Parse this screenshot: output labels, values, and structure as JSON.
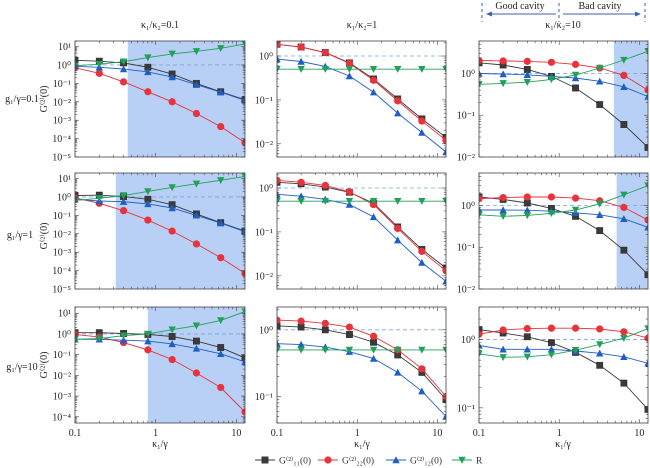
{
  "figure": {
    "cavity_header": {
      "left_label": "Good cavity",
      "right_label": "Bad cavity",
      "arrow_color": "#3a62b5"
    },
    "column_titles": [
      "κ₁/κ₂=0.1",
      "κ₁/κ₂=1",
      "κ₁/κ₂=10"
    ],
    "row_labels": [
      "g₁/γ=0.1",
      "g₁/γ=1",
      "g₁/γ=10"
    ],
    "ylabel": "G⁽²⁾(0)",
    "xlabel": "κ₁/γ",
    "colors": {
      "G11": "#3a3a3a",
      "G22": "#e8323c",
      "G12": "#1f5fc4",
      "R": "#22a05a",
      "shade": "#b8d0f5",
      "reference": "#7aa6dd"
    },
    "legend": [
      {
        "key": "G11",
        "label": "G⁽²⁾₁₁(0)",
        "marker": "square"
      },
      {
        "key": "G22",
        "label": "G⁽²⁾₂₂(0)",
        "marker": "circle"
      },
      {
        "key": "G12",
        "label": "G⁽²⁾₁₂(0)",
        "marker": "triangle-up"
      },
      {
        "key": "R",
        "label": "R",
        "marker": "triangle-down"
      }
    ]
  },
  "chart_data": [
    {
      "type": "line",
      "row": 0,
      "col": 0,
      "xscale": "log",
      "yscale": "log",
      "xlim": [
        0.1,
        12.8
      ],
      "ylim": [
        1e-05,
        20
      ],
      "yticks": [
        10,
        1,
        0.1,
        0.01,
        0.001,
        0.0001,
        1e-05
      ],
      "ytick_labels": [
        "10¹",
        "10⁰",
        "10⁻¹",
        "10⁻²",
        "10⁻³",
        "10⁻⁴",
        "10⁻⁵"
      ],
      "shade_from": 0.45,
      "reference_y": 1,
      "x": [
        0.1,
        0.2,
        0.4,
        0.8,
        1.6,
        3.2,
        6.4,
        12.8
      ],
      "series": [
        {
          "key": "G11",
          "values": [
            1.8,
            1.6,
            1.3,
            0.75,
            0.32,
            0.1,
            0.035,
            0.013
          ]
        },
        {
          "key": "G22",
          "values": [
            0.7,
            0.35,
            0.12,
            0.035,
            0.01,
            0.0023,
            0.00045,
            6e-05
          ]
        },
        {
          "key": "G12",
          "values": [
            0.85,
            0.75,
            0.6,
            0.42,
            0.22,
            0.085,
            0.033,
            0.012
          ]
        },
        {
          "key": "R",
          "values": [
            0.9,
            1.1,
            1.5,
            2.5,
            4,
            5.5,
            8,
            14
          ]
        }
      ]
    },
    {
      "type": "line",
      "row": 0,
      "col": 1,
      "xscale": "log",
      "yscale": "log",
      "xlim": [
        0.1,
        12.8
      ],
      "ylim": [
        0.005,
        2.2
      ],
      "yticks": [
        1,
        0.1,
        0.01
      ],
      "ytick_labels": [
        "10⁰",
        "10⁻¹",
        "10⁻²"
      ],
      "shade_from": null,
      "reference_y": 1,
      "x": [
        0.1,
        0.2,
        0.4,
        0.8,
        1.6,
        3.2,
        6.4,
        12.8
      ],
      "series": [
        {
          "key": "G11",
          "values": [
            1.85,
            1.6,
            1.2,
            0.7,
            0.3,
            0.105,
            0.037,
            0.014
          ]
        },
        {
          "key": "G22",
          "values": [
            1.85,
            1.6,
            1.2,
            0.68,
            0.28,
            0.095,
            0.033,
            0.012
          ]
        },
        {
          "key": "G12",
          "values": [
            0.85,
            0.75,
            0.58,
            0.35,
            0.15,
            0.05,
            0.018,
            0.0065
          ]
        },
        {
          "key": "R",
          "values": [
            0.5,
            0.5,
            0.5,
            0.5,
            0.5,
            0.5,
            0.5,
            0.5
          ]
        }
      ]
    },
    {
      "type": "line",
      "row": 0,
      "col": 2,
      "xscale": "log",
      "yscale": "log",
      "xlim": [
        0.1,
        12.8
      ],
      "ylim": [
        0.01,
        6
      ],
      "yticks": [
        1,
        0.1,
        0.01
      ],
      "ytick_labels": [
        "10⁰",
        "10⁻¹",
        "10⁻²"
      ],
      "shade_from": 4.8,
      "reference_y": 1,
      "x": [
        0.1,
        0.2,
        0.4,
        0.8,
        1.6,
        3.2,
        6.4,
        12.8
      ],
      "series": [
        {
          "key": "G11",
          "values": [
            1.8,
            1.6,
            1.25,
            0.85,
            0.45,
            0.18,
            0.06,
            0.017
          ]
        },
        {
          "key": "G22",
          "values": [
            2.05,
            2.0,
            1.95,
            1.85,
            1.65,
            1.35,
            0.9,
            0.4
          ]
        },
        {
          "key": "G12",
          "values": [
            1.0,
            0.97,
            0.93,
            0.85,
            0.78,
            0.65,
            0.48,
            0.28
          ]
        },
        {
          "key": "R",
          "values": [
            0.55,
            0.58,
            0.62,
            0.72,
            0.92,
            1.35,
            2.1,
            3.4
          ]
        }
      ]
    },
    {
      "type": "line",
      "row": 1,
      "col": 0,
      "xscale": "log",
      "yscale": "log",
      "xlim": [
        0.1,
        12.8
      ],
      "ylim": [
        1e-05,
        20
      ],
      "yticks": [
        10,
        1,
        0.1,
        0.01,
        0.001,
        0.0001,
        1e-05
      ],
      "ytick_labels": [
        "10¹",
        "10⁰",
        "10⁻¹",
        "10⁻²",
        "10⁻³",
        "10⁻⁴",
        "10⁻⁵"
      ],
      "shade_from": 0.32,
      "reference_y": 1,
      "x": [
        0.1,
        0.2,
        0.4,
        0.8,
        1.6,
        3.2,
        6.4,
        12.8
      ],
      "series": [
        {
          "key": "G11",
          "values": [
            1.2,
            1.25,
            1.05,
            0.75,
            0.38,
            0.12,
            0.04,
            0.014
          ]
        },
        {
          "key": "G22",
          "values": [
            0.9,
            0.45,
            0.18,
            0.055,
            0.014,
            0.0028,
            0.0005,
            7e-05
          ]
        },
        {
          "key": "G12",
          "values": [
            0.75,
            0.6,
            0.55,
            0.42,
            0.25,
            0.1,
            0.038,
            0.013
          ]
        },
        {
          "key": "R",
          "values": [
            0.65,
            0.85,
            1.2,
            2.0,
            3.3,
            5.2,
            8,
            13
          ]
        }
      ]
    },
    {
      "type": "line",
      "row": 1,
      "col": 1,
      "xscale": "log",
      "yscale": "log",
      "xlim": [
        0.1,
        12.8
      ],
      "ylim": [
        0.005,
        2.2
      ],
      "yticks": [
        1,
        0.1,
        0.01
      ],
      "ytick_labels": [
        "10⁰",
        "10⁻¹",
        "10⁻²"
      ],
      "shade_from": null,
      "reference_y": 1,
      "x": [
        0.1,
        0.2,
        0.4,
        0.8,
        1.6,
        3.2,
        6.4,
        12.8
      ],
      "series": [
        {
          "key": "G11",
          "values": [
            1.35,
            1.25,
            1.05,
            0.8,
            0.45,
            0.13,
            0.04,
            0.015
          ]
        },
        {
          "key": "G22",
          "values": [
            1.5,
            1.35,
            1.15,
            0.82,
            0.42,
            0.12,
            0.036,
            0.013
          ]
        },
        {
          "key": "G12",
          "values": [
            0.72,
            0.65,
            0.55,
            0.42,
            0.22,
            0.065,
            0.02,
            0.0075
          ]
        },
        {
          "key": "R",
          "values": [
            0.5,
            0.5,
            0.5,
            0.5,
            0.5,
            0.5,
            0.5,
            0.5
          ]
        }
      ]
    },
    {
      "type": "line",
      "row": 1,
      "col": 2,
      "xscale": "log",
      "yscale": "log",
      "xlim": [
        0.1,
        12.8
      ],
      "ylim": [
        0.01,
        6
      ],
      "yticks": [
        1,
        0.1,
        0.01
      ],
      "ytick_labels": [
        "10⁰",
        "10⁻¹",
        "10⁻²"
      ],
      "shade_from": 5.2,
      "reference_y": 1,
      "x": [
        0.1,
        0.2,
        0.4,
        0.8,
        1.6,
        3.2,
        6.4,
        12.8
      ],
      "series": [
        {
          "key": "G11",
          "values": [
            1.6,
            1.4,
            1.15,
            0.85,
            0.55,
            0.25,
            0.085,
            0.022
          ]
        },
        {
          "key": "G22",
          "values": [
            1.45,
            1.55,
            1.6,
            1.6,
            1.5,
            1.3,
            0.9,
            0.45
          ]
        },
        {
          "key": "G12",
          "values": [
            0.78,
            0.78,
            0.77,
            0.73,
            0.67,
            0.6,
            0.48,
            0.3
          ]
        },
        {
          "key": "R",
          "values": [
            0.6,
            0.55,
            0.58,
            0.65,
            0.78,
            1.1,
            1.8,
            3.0
          ]
        }
      ]
    },
    {
      "type": "line",
      "row": 2,
      "col": 0,
      "xscale": "log",
      "yscale": "log",
      "xlim": [
        0.1,
        12.8
      ],
      "ylim": [
        5e-05,
        20
      ],
      "yticks": [
        10,
        1,
        0.1,
        0.01,
        0.001,
        0.0001
      ],
      "ytick_labels": [
        "10¹",
        "10⁰",
        "10⁻¹",
        "10⁻²",
        "10⁻³",
        "10⁻⁴"
      ],
      "shade_from": 0.8,
      "reference_y": 1,
      "x": [
        0.1,
        0.2,
        0.4,
        0.8,
        1.6,
        3.2,
        6.4,
        12.8
      ],
      "series": [
        {
          "key": "G11",
          "values": [
            1.15,
            1.15,
            1.05,
            0.95,
            0.75,
            0.45,
            0.22,
            0.07
          ]
        },
        {
          "key": "G22",
          "values": [
            0.95,
            0.7,
            0.38,
            0.17,
            0.058,
            0.013,
            0.0026,
            0.00017
          ]
        },
        {
          "key": "G12",
          "values": [
            0.55,
            0.55,
            0.5,
            0.45,
            0.33,
            0.2,
            0.11,
            0.045
          ]
        },
        {
          "key": "R",
          "values": [
            0.55,
            0.6,
            0.82,
            1.0,
            1.6,
            2.5,
            4.5,
            12
          ]
        }
      ]
    },
    {
      "type": "line",
      "row": 2,
      "col": 1,
      "xscale": "log",
      "yscale": "log",
      "xlim": [
        0.1,
        12.8
      ],
      "ylim": [
        0.04,
        2.2
      ],
      "yticks": [
        1,
        0.1
      ],
      "ytick_labels": [
        "10⁰",
        "10⁻¹"
      ],
      "shade_from": null,
      "reference_y": 1,
      "x": [
        0.1,
        0.2,
        0.4,
        0.8,
        1.6,
        3.2,
        6.4,
        12.8
      ],
      "series": [
        {
          "key": "G11",
          "values": [
            1.15,
            1.1,
            1.0,
            0.85,
            0.65,
            0.42,
            0.23,
            0.09
          ]
        },
        {
          "key": "G22",
          "values": [
            1.4,
            1.35,
            1.25,
            1.1,
            0.8,
            0.5,
            0.26,
            0.1
          ]
        },
        {
          "key": "G12",
          "values": [
            0.62,
            0.6,
            0.55,
            0.47,
            0.37,
            0.23,
            0.12,
            0.05
          ]
        },
        {
          "key": "R",
          "values": [
            0.5,
            0.5,
            0.5,
            0.5,
            0.5,
            0.5,
            0.5,
            0.5
          ]
        }
      ]
    },
    {
      "type": "line",
      "row": 2,
      "col": 2,
      "xscale": "log",
      "yscale": "log",
      "xlim": [
        0.1,
        12.8
      ],
      "ylim": [
        0.06,
        3
      ],
      "yticks": [
        1,
        0.1
      ],
      "ytick_labels": [
        "10⁰",
        "10⁻¹"
      ],
      "shade_from": null,
      "reference_y": 1,
      "x": [
        0.1,
        0.2,
        0.4,
        0.8,
        1.6,
        3.2,
        6.4,
        12.8
      ],
      "series": [
        {
          "key": "G11",
          "values": [
            1.4,
            1.25,
            1.1,
            0.9,
            0.65,
            0.42,
            0.23,
            0.095
          ]
        },
        {
          "key": "G22",
          "values": [
            1.2,
            1.38,
            1.45,
            1.47,
            1.47,
            1.43,
            1.3,
            1.05
          ]
        },
        {
          "key": "G12",
          "values": [
            0.82,
            0.72,
            0.72,
            0.72,
            0.68,
            0.63,
            0.56,
            0.45
          ]
        },
        {
          "key": "R",
          "values": [
            0.62,
            0.55,
            0.56,
            0.6,
            0.7,
            0.85,
            1.05,
            1.45
          ]
        }
      ]
    }
  ]
}
